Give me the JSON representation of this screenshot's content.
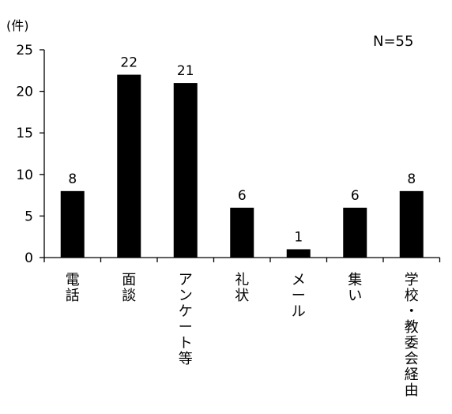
{
  "chart_data": {
    "type": "bar",
    "unit_label": "(件)",
    "annotation": "N=55",
    "categories": [
      "電話",
      "面談",
      "アンケート等",
      "礼状",
      "メール",
      "集い",
      "学校・教委会経由"
    ],
    "values": [
      8,
      22,
      21,
      6,
      1,
      6,
      8
    ],
    "ylim": [
      0,
      25
    ],
    "yticks": [
      0,
      5,
      10,
      15,
      20,
      25
    ],
    "bar_color": "#000000",
    "grid": false,
    "legend": "none"
  }
}
